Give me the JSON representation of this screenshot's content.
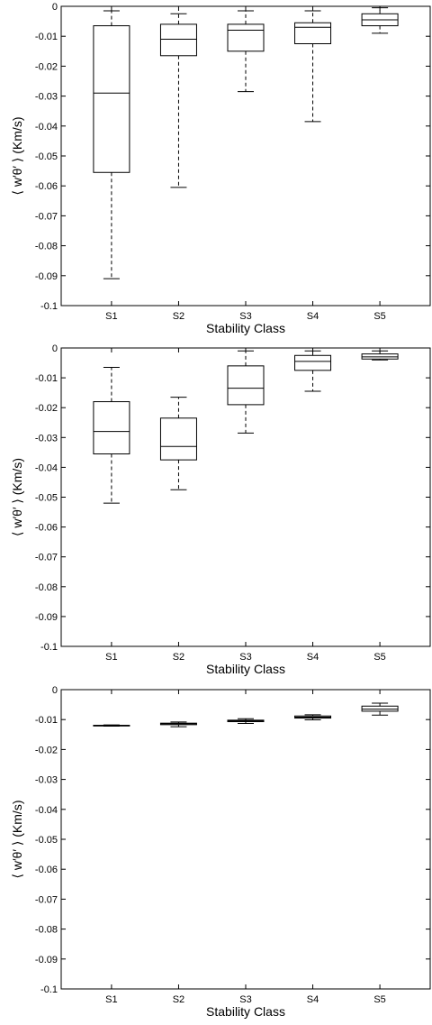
{
  "chart_data": [
    {
      "type": "box",
      "xlabel": "Stability Class",
      "ylabel": "⟨ w′θ′ ⟩ (Km/s)",
      "ylim": [
        -0.1,
        0
      ],
      "yticks": [
        0,
        -0.01,
        -0.02,
        -0.03,
        -0.04,
        -0.05,
        -0.06,
        -0.07,
        -0.08,
        -0.09,
        -0.1
      ],
      "ytick_labels": [
        "0",
        "-0.01",
        "-0.02",
        "-0.03",
        "-0.04",
        "-0.05",
        "-0.06",
        "-0.07",
        "-0.08",
        "-0.09",
        "-0.1"
      ],
      "categories": [
        "S1",
        "S2",
        "S3",
        "S4",
        "S5"
      ],
      "boxes": [
        {
          "min": -0.091,
          "q1": -0.0555,
          "median": -0.029,
          "q3": -0.0065,
          "max": -0.0015
        },
        {
          "min": -0.0605,
          "q1": -0.0165,
          "median": -0.011,
          "q3": -0.006,
          "max": -0.0025
        },
        {
          "min": -0.0285,
          "q1": -0.015,
          "median": -0.008,
          "q3": -0.006,
          "max": -0.0015
        },
        {
          "min": -0.0385,
          "q1": -0.0125,
          "median": -0.007,
          "q3": -0.0055,
          "max": -0.0015
        },
        {
          "min": -0.009,
          "q1": -0.0065,
          "median": -0.0045,
          "q3": -0.0025,
          "max": -0.0005
        }
      ]
    },
    {
      "type": "box",
      "xlabel": "Stability Class",
      "ylabel": "⟨ w′θ′ ⟩ (Km/s)",
      "ylim": [
        -0.1,
        0
      ],
      "yticks": [
        0,
        -0.01,
        -0.02,
        -0.03,
        -0.04,
        -0.05,
        -0.06,
        -0.07,
        -0.08,
        -0.09,
        -0.1
      ],
      "ytick_labels": [
        "0",
        "-0.01",
        "-0.02",
        "-0.03",
        "-0.04",
        "-0.05",
        "-0.06",
        "-0.07",
        "-0.08",
        "-0.09",
        "-0.1"
      ],
      "categories": [
        "S1",
        "S2",
        "S3",
        "S4",
        "S5"
      ],
      "boxes": [
        {
          "min": -0.052,
          "q1": -0.0355,
          "median": -0.028,
          "q3": -0.018,
          "max": -0.0065
        },
        {
          "min": -0.0475,
          "q1": -0.0375,
          "median": -0.033,
          "q3": -0.0235,
          "max": -0.0165
        },
        {
          "min": -0.0285,
          "q1": -0.019,
          "median": -0.0135,
          "q3": -0.006,
          "max": -0.001
        },
        {
          "min": -0.0145,
          "q1": -0.0075,
          "median": -0.0045,
          "q3": -0.0025,
          "max": -0.001
        },
        {
          "min": -0.004,
          "q1": -0.0037,
          "median": -0.003,
          "q3": -0.002,
          "max": -0.001
        }
      ]
    },
    {
      "type": "box",
      "xlabel": "Stability Class",
      "ylabel": "⟨ w′θ′ ⟩ (Km/s)",
      "ylim": [
        -0.1,
        0
      ],
      "yticks": [
        0,
        -0.01,
        -0.02,
        -0.03,
        -0.04,
        -0.05,
        -0.06,
        -0.07,
        -0.08,
        -0.09,
        -0.1
      ],
      "ytick_labels": [
        "0",
        "-0.01",
        "-0.02",
        "-0.03",
        "-0.04",
        "-0.05",
        "-0.06",
        "-0.07",
        "-0.08",
        "-0.09",
        "-0.1"
      ],
      "categories": [
        "S1",
        "S2",
        "S3",
        "S4",
        "S5"
      ],
      "boxes": [
        {
          "min": -0.0122,
          "q1": -0.0121,
          "median": -0.012,
          "q3": -0.0119,
          "max": -0.0118
        },
        {
          "min": -0.0124,
          "q1": -0.0117,
          "median": -0.0114,
          "q3": -0.0112,
          "max": -0.0108
        },
        {
          "min": -0.0113,
          "q1": -0.0107,
          "median": -0.0104,
          "q3": -0.0102,
          "max": -0.0097
        },
        {
          "min": -0.0101,
          "q1": -0.0095,
          "median": -0.0092,
          "q3": -0.0088,
          "max": -0.0084
        },
        {
          "min": -0.0085,
          "q1": -0.0072,
          "median": -0.0065,
          "q3": -0.0055,
          "max": -0.0045
        }
      ]
    }
  ]
}
